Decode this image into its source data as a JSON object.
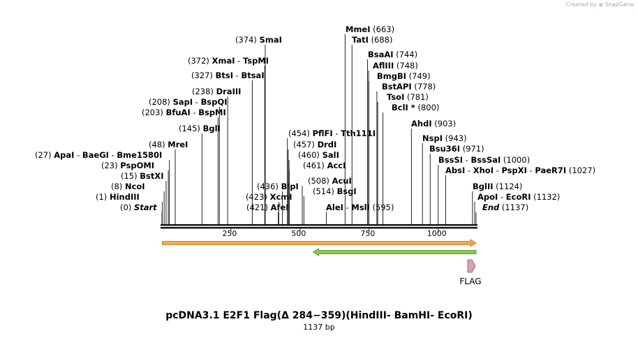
{
  "credit": {
    "prefix": "Created by",
    "brand": "SnapGene"
  },
  "map": {
    "title": "pcDNA3.1 E2F1 Flag(Δ 284−359)(HindIII- BamHI- EcoRI)",
    "length_label": "1137 bp",
    "total_bp": 1137,
    "ticks": [
      {
        "bp": 250,
        "label": "250"
      },
      {
        "bp": 500,
        "label": "500"
      },
      {
        "bp": 750,
        "label": "750"
      },
      {
        "bp": 1000,
        "label": "1000"
      }
    ],
    "sites": [
      {
        "pos": 0,
        "pos_text": "(0)",
        "names": [
          "Start"
        ],
        "italic": true
      },
      {
        "pos": 1,
        "pos_text": "(1)",
        "names": [
          "HindIII"
        ]
      },
      {
        "pos": 8,
        "pos_text": "(8)",
        "names": [
          "NcoI"
        ]
      },
      {
        "pos": 15,
        "pos_text": "(15)",
        "names": [
          "BstXI"
        ]
      },
      {
        "pos": 23,
        "pos_text": "(23)",
        "names": [
          "PspOMI"
        ]
      },
      {
        "pos": 27,
        "pos_text": "(27)",
        "names": [
          "ApaI",
          "BaeGI",
          "Bme1580I"
        ]
      },
      {
        "pos": 48,
        "pos_text": "(48)",
        "names": [
          "MreI"
        ]
      },
      {
        "pos": 145,
        "pos_text": "(145)",
        "names": [
          "BglI"
        ]
      },
      {
        "pos": 203,
        "pos_text": "(203)",
        "names": [
          "BfuAI",
          "BspMI"
        ]
      },
      {
        "pos": 208,
        "pos_text": "(208)",
        "names": [
          "SapI",
          "BspQI"
        ]
      },
      {
        "pos": 238,
        "pos_text": "(238)",
        "names": [
          "DraIII"
        ]
      },
      {
        "pos": 327,
        "pos_text": "(327)",
        "names": [
          "BtsI",
          "BtsaI"
        ]
      },
      {
        "pos": 372,
        "pos_text": "(372)",
        "names": [
          "XmaI",
          "TspMI"
        ]
      },
      {
        "pos": 374,
        "pos_text": "(374)",
        "names": [
          "SmaI"
        ]
      },
      {
        "pos": 421,
        "pos_text": "(421)",
        "names": [
          "AfeI"
        ]
      },
      {
        "pos": 423,
        "pos_text": "(423)",
        "names": [
          "XcmI"
        ]
      },
      {
        "pos": 436,
        "pos_text": "(436)",
        "names": [
          "BlpI"
        ]
      },
      {
        "pos": 454,
        "pos_text": "(454)",
        "names": [
          "PflFI",
          "Tth111I"
        ]
      },
      {
        "pos": 457,
        "pos_text": "(457)",
        "names": [
          "DrdI"
        ]
      },
      {
        "pos": 460,
        "pos_text": "(460)",
        "names": [
          "SalI"
        ]
      },
      {
        "pos": 461,
        "pos_text": "(461)",
        "names": [
          "AccI"
        ]
      },
      {
        "pos": 508,
        "pos_text": "(508)",
        "names": [
          "AcuI"
        ]
      },
      {
        "pos": 514,
        "pos_text": "(514)",
        "names": [
          "BsgI"
        ]
      },
      {
        "pos": 595,
        "pos_text": "(595)",
        "names": [
          "AleI",
          "MslI"
        ]
      },
      {
        "pos": 663,
        "pos_text": "(663)",
        "names": [
          "MmeI"
        ]
      },
      {
        "pos": 688,
        "pos_text": "(688)",
        "names": [
          "TatI"
        ]
      },
      {
        "pos": 744,
        "pos_text": "(744)",
        "names": [
          "BsaAI"
        ]
      },
      {
        "pos": 748,
        "pos_text": "(748)",
        "names": [
          "AflIII"
        ]
      },
      {
        "pos": 749,
        "pos_text": "(749)",
        "names": [
          "BmgBI"
        ]
      },
      {
        "pos": 778,
        "pos_text": "(778)",
        "names": [
          "BstAPI"
        ]
      },
      {
        "pos": 781,
        "pos_text": "(781)",
        "names": [
          "TsoI"
        ]
      },
      {
        "pos": 800,
        "pos_text": "(800)",
        "names": [
          "BclI *"
        ]
      },
      {
        "pos": 903,
        "pos_text": "(903)",
        "names": [
          "AhdI"
        ]
      },
      {
        "pos": 943,
        "pos_text": "(943)",
        "names": [
          "NspI"
        ]
      },
      {
        "pos": 971,
        "pos_text": "(971)",
        "names": [
          "Bsu36I"
        ]
      },
      {
        "pos": 1000,
        "pos_text": "(1000)",
        "names": [
          "BssSI",
          "BssSaI"
        ]
      },
      {
        "pos": 1027,
        "pos_text": "(1027)",
        "names": [
          "AbsI",
          "XhoI",
          "PspXI",
          "PaeR7I"
        ]
      },
      {
        "pos": 1124,
        "pos_text": "(1124)",
        "names": [
          "BglII"
        ]
      },
      {
        "pos": 1132,
        "pos_text": "(1132)",
        "names": [
          "ApoI",
          "EcoRI"
        ]
      },
      {
        "pos": 1137,
        "pos_text": "(1137)",
        "names": [
          "End"
        ],
        "italic": true
      }
    ],
    "features": [
      {
        "name": "orf-forward",
        "start": 1,
        "end": 1137,
        "direction": "forward",
        "color": "#f0a850",
        "outline": "#c07820"
      },
      {
        "name": "orf-reverse",
        "start": 547,
        "end": 1137,
        "direction": "reverse",
        "color": "#88cc44",
        "outline": "#4a8a20"
      },
      {
        "name": "FLAG",
        "label": "FLAG",
        "start": 1110,
        "end": 1137,
        "direction": "forward",
        "color": "#d9a0b4",
        "outline": "#8a5a6a"
      }
    ],
    "colors": {
      "backbone": "#111111",
      "lines": "#222222"
    }
  }
}
